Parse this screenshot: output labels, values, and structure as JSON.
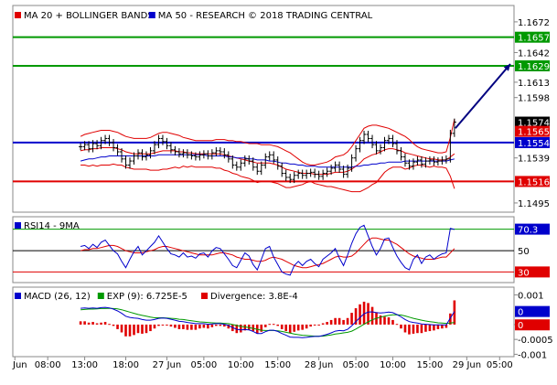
{
  "chart_data": [
    {
      "panel": "price",
      "type": "candlestick",
      "legend": [
        {
          "label": "MA 20 + BOLLINGER BANDS",
          "color": "#e00000"
        },
        {
          "label": "MA 50 - RESEARCH © 2018 TRADING CENTRAL",
          "color": "#0000cc"
        }
      ],
      "y_ticks": [
        1.1672,
        1.1642,
        1.1613,
        1.1598,
        1.1539,
        1.1495
      ],
      "y_range": [
        1.1486,
        1.1688
      ],
      "levels": [
        {
          "value": 1.1657,
          "label": "1.1657",
          "color": "#009900"
        },
        {
          "value": 1.1629,
          "label": "1.1629",
          "color": "#009900"
        },
        {
          "value": 1.1554,
          "label": "1.1554",
          "color": "#0000cc"
        },
        {
          "value": 1.1516,
          "label": "1.1516",
          "color": "#e00000"
        }
      ],
      "value_tags": [
        {
          "value": 1.1574,
          "label": "1.1574",
          "color": "#000000"
        },
        {
          "value": 1.1565,
          "label": "1.1565",
          "color": "#e00000"
        }
      ],
      "close": [
        1.155,
        1.1552,
        1.1548,
        1.1553,
        1.1551,
        1.1556,
        1.1558,
        1.1554,
        1.1549,
        1.1545,
        1.1538,
        1.1532,
        1.1536,
        1.1541,
        1.1544,
        1.154,
        1.1542,
        1.1546,
        1.1552,
        1.1558,
        1.1555,
        1.1551,
        1.1547,
        1.1545,
        1.1543,
        1.1544,
        1.1542,
        1.1541,
        1.154,
        1.1542,
        1.1543,
        1.1541,
        1.1544,
        1.1546,
        1.1545,
        1.1542,
        1.1538,
        1.1532,
        1.153,
        1.1534,
        1.1538,
        1.1536,
        1.153,
        1.1526,
        1.1532,
        1.154,
        1.1542,
        1.1537,
        1.1531,
        1.1524,
        1.152,
        1.1518,
        1.1522,
        1.1524,
        1.1522,
        1.1524,
        1.1525,
        1.1523,
        1.1521,
        1.1524,
        1.1526,
        1.1529,
        1.1532,
        1.1528,
        1.1523,
        1.1529,
        1.1539,
        1.1548,
        1.1556,
        1.1562,
        1.1558,
        1.1552,
        1.1546,
        1.1549,
        1.1556,
        1.1558,
        1.1553,
        1.1546,
        1.154,
        1.1534,
        1.1531,
        1.1535,
        1.1537,
        1.1533,
        1.1536,
        1.1537,
        1.1535,
        1.1536,
        1.1537,
        1.1538,
        1.1563,
        1.1574
      ],
      "ma20": [
        1.1546,
        1.1547,
        1.1547,
        1.1548,
        1.1548,
        1.1549,
        1.1549,
        1.1549,
        1.1549,
        1.1548,
        1.1547,
        1.1545,
        1.1544,
        1.1543,
        1.1543,
        1.1543,
        1.1543,
        1.1543,
        1.1544,
        1.1545,
        1.1546,
        1.1546,
        1.1546,
        1.1546,
        1.1545,
        1.1545,
        1.1544,
        1.1544,
        1.1543,
        1.1543,
        1.1543,
        1.1543,
        1.1543,
        1.1543,
        1.1543,
        1.1542,
        1.1541,
        1.154,
        1.1539,
        1.1538,
        1.1537,
        1.1536,
        1.1535,
        1.1534,
        1.1534,
        1.1534,
        1.1534,
        1.1533,
        1.1532,
        1.153,
        1.1528,
        1.1527,
        1.1526,
        1.1525,
        1.1524,
        1.1524,
        1.1524,
        1.1523,
        1.1523,
        1.1523,
        1.1523,
        1.1524,
        1.1525,
        1.1525,
        1.1525,
        1.1526,
        1.1528,
        1.1531,
        1.1534,
        1.1538,
        1.154,
        1.1542,
        1.1543,
        1.1545,
        1.1547,
        1.1548,
        1.1548,
        1.1547,
        1.1546,
        1.1544,
        1.1543,
        1.1542,
        1.1541,
        1.154,
        1.1539,
        1.1538,
        1.1538,
        1.1537,
        1.1537,
        1.1537,
        1.154,
        1.1543
      ],
      "ma50": [
        1.1536,
        1.1537,
        1.1538,
        1.1538,
        1.1539,
        1.154,
        1.154,
        1.1541,
        1.1541,
        1.1541,
        1.1541,
        1.1541,
        1.1541,
        1.1541,
        1.1541,
        1.1541,
        1.1541,
        1.1541,
        1.1541,
        1.1542,
        1.1542,
        1.1542,
        1.1542,
        1.1542,
        1.1542,
        1.1542,
        1.1542,
        1.1542,
        1.1542,
        1.1542,
        1.1542,
        1.1541,
        1.1541,
        1.1541,
        1.1541,
        1.1541,
        1.154,
        1.154,
        1.1539,
        1.1539,
        1.1539,
        1.1538,
        1.1538,
        1.1537,
        1.1537,
        1.1537,
        1.1536,
        1.1536,
        1.1535,
        1.1534,
        1.1534,
        1.1533,
        1.1533,
        1.1532,
        1.1532,
        1.1531,
        1.1531,
        1.1531,
        1.153,
        1.153,
        1.153,
        1.153,
        1.153,
        1.153,
        1.153,
        1.153,
        1.153,
        1.1531,
        1.1531,
        1.1532,
        1.1532,
        1.1533,
        1.1533,
        1.1534,
        1.1534,
        1.1535,
        1.1535,
        1.1535,
        1.1535,
        1.1536,
        1.1536,
        1.1536,
        1.1536,
        1.1536,
        1.1536,
        1.1536,
        1.1536,
        1.1536,
        1.1536,
        1.1536,
        1.1537,
        1.1538
      ],
      "upper_band": [
        1.156,
        1.1562,
        1.1563,
        1.1564,
        1.1565,
        1.1566,
        1.1566,
        1.1566,
        1.1565,
        1.1564,
        1.1562,
        1.156,
        1.1559,
        1.1558,
        1.1558,
        1.1558,
        1.1558,
        1.1559,
        1.1561,
        1.1563,
        1.1564,
        1.1564,
        1.1563,
        1.1562,
        1.1561,
        1.1559,
        1.1558,
        1.1557,
        1.1556,
        1.1556,
        1.1556,
        1.1556,
        1.1556,
        1.1557,
        1.1557,
        1.1557,
        1.1556,
        1.1556,
        1.1555,
        1.1555,
        1.1554,
        1.1553,
        1.1553,
        1.1553,
        1.1552,
        1.1552,
        1.1552,
        1.1551,
        1.155,
        1.1548,
        1.1546,
        1.1544,
        1.1541,
        1.1538,
        1.1535,
        1.1533,
        1.1532,
        1.1532,
        1.1533,
        1.1534,
        1.1535,
        1.1537,
        1.154,
        1.1541,
        1.1542,
        1.1545,
        1.155,
        1.1556,
        1.1562,
        1.1568,
        1.157,
        1.1571,
        1.1571,
        1.157,
        1.1569,
        1.1568,
        1.1566,
        1.1564,
        1.1562,
        1.156,
        1.1557,
        1.1553,
        1.155,
        1.1548,
        1.1547,
        1.1546,
        1.1545,
        1.1544,
        1.1544,
        1.1545,
        1.1559,
        1.1577
      ],
      "lower_band": [
        1.1532,
        1.1532,
        1.1531,
        1.1532,
        1.1531,
        1.1532,
        1.1532,
        1.1532,
        1.1533,
        1.1532,
        1.1532,
        1.153,
        1.1529,
        1.1528,
        1.1528,
        1.1528,
        1.1528,
        1.1527,
        1.1527,
        1.1527,
        1.1528,
        1.1528,
        1.1529,
        1.153,
        1.1529,
        1.1531,
        1.153,
        1.1531,
        1.153,
        1.153,
        1.153,
        1.153,
        1.153,
        1.1529,
        1.1529,
        1.1527,
        1.1526,
        1.1524,
        1.1523,
        1.1521,
        1.152,
        1.1519,
        1.1517,
        1.1515,
        1.1516,
        1.1516,
        1.1516,
        1.1515,
        1.1514,
        1.1512,
        1.151,
        1.151,
        1.1511,
        1.1512,
        1.1513,
        1.1515,
        1.1516,
        1.1514,
        1.1513,
        1.1512,
        1.1511,
        1.1511,
        1.151,
        1.1509,
        1.1508,
        1.1507,
        1.1506,
        1.1506,
        1.1506,
        1.1508,
        1.151,
        1.1513,
        1.1515,
        1.152,
        1.1525,
        1.1528,
        1.153,
        1.153,
        1.153,
        1.1528,
        1.1529,
        1.1531,
        1.1532,
        1.1532,
        1.1531,
        1.153,
        1.1531,
        1.153,
        1.153,
        1.1529,
        1.1521,
        1.1509
      ],
      "forecast_arrow": {
        "from": 1.1568,
        "to": 1.1629
      }
    },
    {
      "panel": "rsi",
      "type": "line",
      "legend": [
        {
          "label": "RSI14 - 9MA",
          "color": "#0000cc"
        }
      ],
      "y_range": [
        20,
        82
      ],
      "levels": [
        {
          "value": 70.3,
          "label": "70.3",
          "color": "#009900",
          "tag": "#0000cc"
        },
        {
          "value": 50,
          "label": "50",
          "color": "#000000",
          "tag": "#ffffff"
        },
        {
          "value": 30,
          "label": "30",
          "color": "#e00000",
          "tag": "#e00000"
        }
      ],
      "rsi": [
        54,
        55,
        52,
        56,
        53,
        58,
        60,
        55,
        50,
        47,
        40,
        34,
        42,
        49,
        54,
        46,
        50,
        54,
        58,
        64,
        58,
        52,
        47,
        46,
        44,
        48,
        44,
        45,
        43,
        47,
        48,
        44,
        50,
        53,
        52,
        47,
        42,
        36,
        34,
        41,
        48,
        45,
        37,
        32,
        42,
        52,
        54,
        44,
        37,
        30,
        28,
        27,
        36,
        40,
        36,
        40,
        42,
        38,
        35,
        42,
        45,
        48,
        52,
        43,
        36,
        46,
        57,
        66,
        72,
        74,
        64,
        54,
        46,
        52,
        61,
        62,
        53,
        45,
        39,
        34,
        32,
        42,
        46,
        38,
        44,
        46,
        42,
        45,
        47,
        48,
        71,
        70
      ],
      "ma9": [
        50,
        51,
        51,
        52,
        52,
        53,
        54,
        55,
        55,
        54,
        52,
        50,
        49,
        48,
        48,
        48,
        49,
        50,
        51,
        53,
        54,
        54,
        53,
        52,
        51,
        50,
        49,
        48,
        47,
        46,
        46,
        46,
        46,
        47,
        48,
        48,
        47,
        46,
        44,
        43,
        42,
        42,
        41,
        40,
        40,
        41,
        43,
        44,
        43,
        42,
        40,
        38,
        36,
        35,
        34,
        34,
        35,
        36,
        37,
        38,
        40,
        42,
        44,
        45,
        44,
        44,
        45,
        48,
        52,
        56,
        60,
        62,
        62,
        61,
        60,
        60,
        58,
        56,
        53,
        50,
        47,
        45,
        44,
        43,
        42,
        42,
        42,
        43,
        44,
        44,
        48,
        52
      ]
    },
    {
      "panel": "macd",
      "type": "bar+line",
      "legend": [
        {
          "label": "MACD (26, 12)",
          "color": "#0000cc"
        },
        {
          "label": "EXP (9): 6.725E-5",
          "color": "#009900"
        },
        {
          "label": "Divergence: 3.8E-4",
          "color": "#e00000"
        }
      ],
      "y_ticks": [
        0.001,
        0,
        -0.0005,
        -0.001
      ],
      "y_tick_labels": [
        "0.001",
        "0",
        "-0.0005",
        "-0.001"
      ],
      "y_range": [
        -0.00108,
        0.00126
      ],
      "value_tags": [
        {
          "value": 0.00044,
          "label": "0",
          "color": "#0000cc"
        },
        {
          "value": -1e-05,
          "label": "0",
          "color": "#e00000"
        }
      ],
      "macd": [
        0.00055,
        0.00056,
        0.00055,
        0.00056,
        0.00055,
        0.00057,
        0.00058,
        0.00056,
        0.00052,
        0.00046,
        0.00038,
        0.00028,
        0.00024,
        0.00022,
        0.00021,
        0.00017,
        0.00015,
        0.00015,
        0.00017,
        0.00021,
        0.00022,
        0.00021,
        0.00018,
        0.00015,
        0.00011,
        0.0001,
        7e-05,
        5e-05,
        3e-05,
        3e-05,
        3e-05,
        1e-05,
        2e-05,
        3e-05,
        3e-05,
        1e-05,
        -3e-05,
        -0.0001,
        -0.00016,
        -0.00018,
        -0.00017,
        -0.00018,
        -0.00023,
        -0.0003,
        -0.0003,
        -0.00024,
        -0.00019,
        -0.00019,
        -0.00023,
        -0.0003,
        -0.00036,
        -0.00042,
        -0.00043,
        -0.00043,
        -0.00044,
        -0.00043,
        -0.00041,
        -0.0004,
        -0.0004,
        -0.00037,
        -0.00033,
        -0.00028,
        -0.00022,
        -0.0002,
        -0.00021,
        -0.00016,
        -4e-05,
        0.0001,
        0.00024,
        0.00036,
        0.00042,
        0.00043,
        0.0004,
        0.00039,
        0.0004,
        0.00042,
        0.0004,
        0.00034,
        0.00026,
        0.00017,
        0.0001,
        7e-05,
        5e-05,
        2e-05,
        1e-05,
        0.0,
        -1e-05,
        -1e-05,
        -1e-05,
        -1e-05,
        0.00022,
        0.00044
      ],
      "signal": [
        0.0005,
        0.00051,
        0.00052,
        0.00052,
        0.00053,
        0.00054,
        0.00054,
        0.00055,
        0.00054,
        0.00053,
        0.0005,
        0.00046,
        0.00042,
        0.00038,
        0.00034,
        0.00031,
        0.00028,
        0.00025,
        0.00023,
        0.00023,
        0.00023,
        0.00022,
        0.00021,
        0.0002,
        0.00018,
        0.00017,
        0.00015,
        0.00013,
        0.00011,
        9e-05,
        8e-05,
        7e-05,
        6e-05,
        5e-05,
        5e-05,
        4e-05,
        3e-05,
        0.0,
        -3e-05,
        -6e-05,
        -8e-05,
        -0.0001,
        -0.00013,
        -0.00016,
        -0.00019,
        -0.0002,
        -0.0002,
        -0.0002,
        -0.00021,
        -0.00023,
        -0.00026,
        -0.00029,
        -0.00032,
        -0.00034,
        -0.00036,
        -0.00037,
        -0.00038,
        -0.00039,
        -0.00039,
        -0.00039,
        -0.00037,
        -0.00035,
        -0.00032,
        -0.0003,
        -0.00028,
        -0.00026,
        -0.00022,
        -0.00015,
        -7e-05,
        1e-05,
        9e-05,
        0.00016,
        0.00021,
        0.00025,
        0.00028,
        0.00031,
        0.00033,
        0.00033,
        0.00032,
        0.00029,
        0.00025,
        0.00021,
        0.00018,
        0.00015,
        0.00012,
        0.0001,
        8e-05,
        6e-05,
        5e-05,
        4e-05,
        5e-05,
        7e-05
      ]
    }
  ],
  "x_axis": {
    "labels": [
      {
        "text": "Jun",
        "index": 0
      },
      {
        "text": "08:00",
        "index": 8
      },
      {
        "text": "13:00",
        "index": 17
      },
      {
        "text": "18:00",
        "index": 27
      },
      {
        "text": "27 Jun",
        "index": 37
      },
      {
        "text": "05:00",
        "index": 46
      },
      {
        "text": "10:00",
        "index": 55
      },
      {
        "text": "15:00",
        "index": 64
      },
      {
        "text": "28 Jun",
        "index": 74
      },
      {
        "text": "05:00",
        "index": 83
      },
      {
        "text": "10:00",
        "index": 92
      },
      {
        "text": "15:00",
        "index": 101
      },
      {
        "text": "29 Jun",
        "index": 110
      },
      {
        "text": "05:00",
        "index": 118
      }
    ]
  }
}
